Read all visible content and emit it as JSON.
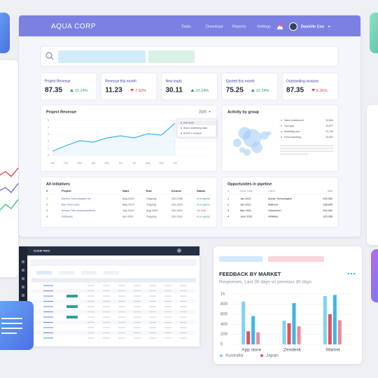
{
  "header": {
    "brand": "AQUA CORP",
    "nav": [
      "Tasks",
      "Download",
      "Reports",
      "Settings"
    ],
    "user": "Danielle Cox"
  },
  "kpis": [
    {
      "label": "Project Revenue",
      "value": "87.35",
      "change": "22.24%",
      "trend": "up"
    },
    {
      "label": "Revenue this month",
      "value": "11.23",
      "change": "7.52%",
      "trend": "down"
    },
    {
      "label": "New leads",
      "value": "30.11",
      "change": "22.24%",
      "trend": "up"
    },
    {
      "label": "Quoted this month",
      "value": "75.25",
      "change": "22.24%",
      "trend": "up"
    },
    {
      "label": "Outstanding invoices",
      "value": "87.35",
      "change": "5.36%",
      "trend": "down"
    }
  ],
  "initiatives": {
    "title": "All initiatives",
    "columns": [
      "#",
      "Project",
      "Start",
      "End",
      "Income",
      "Status"
    ],
    "rows": [
      {
        "cells": [
          "1",
          "Electric Technologies Inc",
          "Aug 2019",
          "Ongoing",
          "232,2398",
          "In progress"
        ],
        "status_color": "#2e9e5b"
      },
      {
        "cells": [
          "2",
          "Bax Point Labs",
          "May 2019",
          "Ongoing",
          "202,3321",
          "In progress"
        ],
        "status_color": "#2e9e5b"
      },
      {
        "cells": [
          "3",
          "Arrows Title communications",
          "July 2019",
          "Aug 2019",
          "202,3321",
          "On hold"
        ],
        "status_color": "#e0454f"
      },
      {
        "cells": [
          "4",
          "GoBeans",
          "Apr 2020",
          "Ongoing",
          "232,2321",
          "In progress"
        ],
        "status_color": "#2e9e5b"
      }
    ]
  },
  "pipeline": {
    "title": "Opportunites in pipeline",
    "columns": [
      "#",
      "Issue Date",
      "Client",
      "Total"
    ],
    "rows": [
      [
        "1",
        "Jan 2021",
        "Adobe Technologies",
        "315,281"
      ],
      [
        "2",
        "Jan 2021",
        "Walmart",
        "198,855"
      ],
      [
        "3",
        "Mar 2021",
        "Genentech",
        "315,281"
      ],
      [
        "4",
        "June 2021",
        "VMWare",
        "125,265"
      ]
    ]
  },
  "cloud": {
    "brand": "CLOUD TECH"
  },
  "chart_data": [
    {
      "type": "line",
      "title": "Project Revenue",
      "badge": "2020",
      "categories": [
        "Jan",
        "Feb",
        "Mar",
        "Apr",
        "May",
        "Jun",
        "Jul",
        "Aug",
        "Sep",
        "Oct"
      ],
      "values": [
        0.6,
        1.4,
        2.1,
        1.9,
        2.5,
        2.8,
        2.5,
        3.1,
        2.9,
        4.6
      ],
      "ylim": [
        0,
        5
      ],
      "yticks": [
        0,
        1,
        2,
        3,
        4,
        5
      ],
      "color": "#3fb4ea",
      "menu": [
        "Drill down",
        "Show underlying data",
        "Sort/A-Z analyze"
      ]
    },
    {
      "type": "bubble",
      "title": "Activity by group",
      "x": [
        2,
        3.5,
        5,
        6,
        4,
        7.5,
        3,
        8.5
      ],
      "values": [
        5,
        7,
        6,
        4,
        3,
        6.5,
        3.5,
        7
      ],
      "sizes": [
        6,
        9,
        13,
        8,
        5,
        6,
        4,
        3
      ],
      "xlim": [
        0,
        10
      ],
      "ylim": [
        0,
        10
      ],
      "color": "#9fc8f5",
      "legend": [
        {
          "name": "Sales enablement",
          "value": "32,654"
        },
        {
          "name": "Gam gas",
          "value": "25,877"
        },
        {
          "name": "Marketing ops",
          "value": "23,765"
        },
        {
          "name": "Field marketing",
          "value": "23,541"
        }
      ]
    },
    {
      "type": "bar",
      "title": "FEEDBACK BY MARKET",
      "subtitle": "Responses, Last 30 days vs previous 30 days",
      "categories": [
        "App store",
        "Zendesk",
        "Market"
      ],
      "series": [
        {
          "name": "Australia",
          "color": "#7fd3f0",
          "values": [
            850,
            470,
            960
          ]
        },
        {
          "name": "Japan",
          "color": "#e0525c",
          "values": [
            260,
            420,
            600
          ]
        },
        {
          "color": "#3fb4ea",
          "values": [
            560,
            820,
            980
          ]
        },
        {
          "color": "#f08a93",
          "values": [
            240,
            360,
            480
          ]
        }
      ],
      "ylim": [
        0,
        1000
      ],
      "yticks": [
        0,
        200,
        400,
        600,
        800,
        {
          "value": 1000,
          "label": "1k"
        }
      ],
      "grid": true
    }
  ]
}
